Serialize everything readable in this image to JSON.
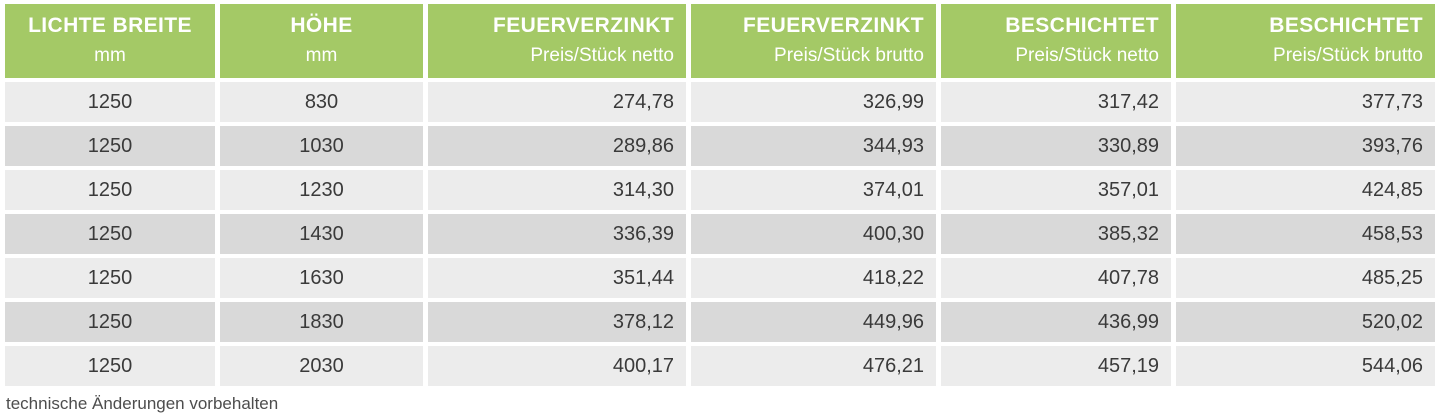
{
  "colors": {
    "header_bg": "#a4c966",
    "header_text": "#ffffff",
    "row_light": "#ececec",
    "row_dark": "#d9d9d9",
    "cell_text": "#3a3a3a",
    "note_text": "#4d4d4d"
  },
  "chart_data": {
    "type": "table",
    "title": "",
    "columns": [
      {
        "title": "LICHTE BREITE",
        "subtitle": "mm",
        "align": "center"
      },
      {
        "title": "HÖHE",
        "subtitle": "mm",
        "align": "center"
      },
      {
        "title": "FEUERVERZINKT",
        "subtitle": "Preis/Stück netto",
        "align": "right"
      },
      {
        "title": "FEUERVERZINKT",
        "subtitle": "Preis/Stück brutto",
        "align": "right"
      },
      {
        "title": "BESCHICHTET",
        "subtitle": "Preis/Stück netto",
        "align": "right"
      },
      {
        "title": "BESCHICHTET",
        "subtitle": "Preis/Stück brutto",
        "align": "right"
      }
    ],
    "rows": [
      [
        "1250",
        "830",
        "274,78",
        "326,99",
        "317,42",
        "377,73"
      ],
      [
        "1250",
        "1030",
        "289,86",
        "344,93",
        "330,89",
        "393,76"
      ],
      [
        "1250",
        "1230",
        "314,30",
        "374,01",
        "357,01",
        "424,85"
      ],
      [
        "1250",
        "1430",
        "336,39",
        "400,30",
        "385,32",
        "458,53"
      ],
      [
        "1250",
        "1630",
        "351,44",
        "418,22",
        "407,78",
        "485,25"
      ],
      [
        "1250",
        "1830",
        "378,12",
        "449,96",
        "436,99",
        "520,02"
      ],
      [
        "1250",
        "2030",
        "400,17",
        "476,21",
        "457,19",
        "544,06"
      ]
    ]
  },
  "footer": {
    "note": "technische Änderungen vorbehalten"
  }
}
